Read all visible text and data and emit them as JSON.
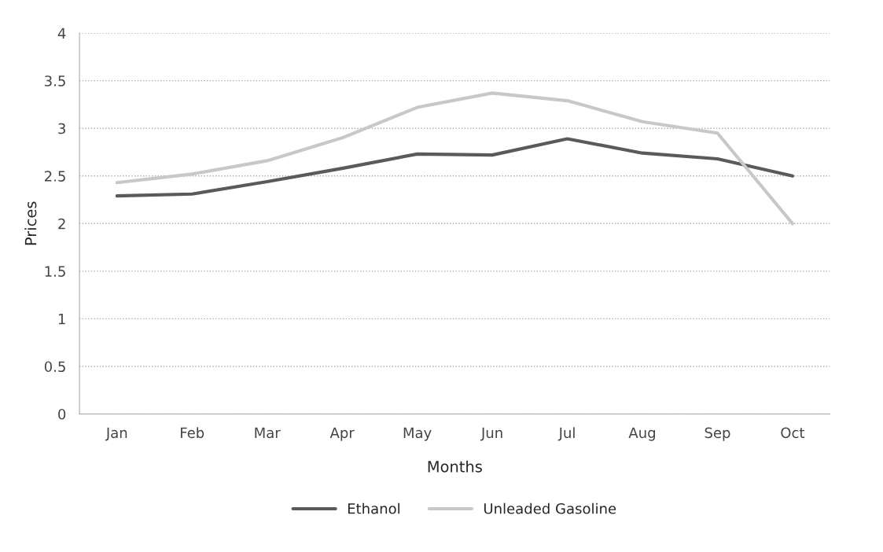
{
  "chart_data": {
    "type": "line",
    "xlabel": "Months",
    "ylabel": "Prices",
    "categories": [
      "Jan",
      "Feb",
      "Mar",
      "Apr",
      "May",
      "Jun",
      "Jul",
      "Aug",
      "Sep",
      "Oct"
    ],
    "series": [
      {
        "name": "Ethanol",
        "color": "#5a5a5a",
        "values": [
          2.29,
          2.31,
          2.44,
          2.58,
          2.73,
          2.72,
          2.89,
          2.74,
          2.68,
          2.5
        ]
      },
      {
        "name": "Unleaded Gasoline",
        "color": "#c8c8c8",
        "values": [
          2.43,
          2.52,
          2.66,
          2.9,
          3.22,
          3.37,
          3.29,
          3.07,
          2.95,
          2.0
        ]
      }
    ],
    "ylim": [
      0,
      4
    ],
    "yticks": [
      0,
      0.5,
      1,
      1.5,
      2,
      2.5,
      3,
      3.5,
      4
    ],
    "grid": "y",
    "legend": "bottom",
    "marker": "none",
    "line_style": "solid"
  }
}
